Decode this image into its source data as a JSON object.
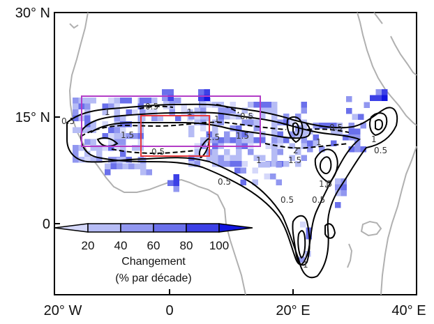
{
  "axes": {
    "x_ticks": [
      "20° W",
      "0",
      "20° E",
      "40° E"
    ],
    "y_ticks": [
      "30° N",
      "15° N",
      "0"
    ]
  },
  "contour_labels": [
    "0.5",
    "1",
    "1.5",
    "0.5",
    "1",
    "0.5",
    "1.5",
    "1",
    "0.5",
    "0.5",
    "1",
    "1.5",
    "2",
    "1.5",
    "1",
    "0.5",
    "1",
    "0.5",
    "1",
    "0.5",
    "0.5",
    "1.5",
    "0.5",
    "0.5",
    "1"
  ],
  "colorbar": {
    "ticks": [
      "20",
      "40",
      "60",
      "80",
      "100"
    ],
    "title_line1": "Changement",
    "title_line2": "(% par décade)",
    "colors": [
      "#d5d8fa",
      "#b6bcf5",
      "#9197f0",
      "#6a70eb",
      "#3c40e6",
      "#1216e0"
    ]
  },
  "colors": {
    "coast": "#b0b0b0",
    "contour": "#000000",
    "purple_box": "#b23cc6",
    "red_box": "#e8383d"
  }
}
